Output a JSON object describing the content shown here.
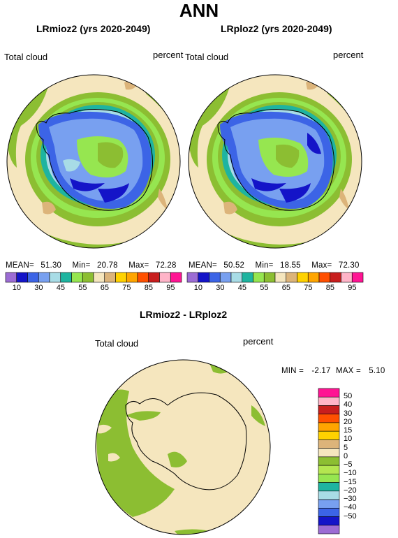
{
  "figure": {
    "title": "ANN"
  },
  "panels": [
    {
      "title": "LRmioz2 (yrs 2020-2049)",
      "left_label": "Total cloud",
      "right_label": "percent",
      "stats": {
        "mean_label": "MEAN=",
        "mean": "51.30",
        "min_label": "Min=",
        "min": "20.78",
        "max_label": "Max=",
        "max": "72.28"
      }
    },
    {
      "title": "LRploz2 (yrs 2020-2049)",
      "left_label": "Total cloud",
      "right_label": "percent",
      "stats": {
        "mean_label": "MEAN=",
        "mean": "50.52",
        "min_label": "Min=",
        "min": "18.55",
        "max_label": "Max=",
        "max": "72.30"
      }
    },
    {
      "title": "LRmioz2 - LRploz2",
      "left_label": "Total cloud",
      "right_label": "percent",
      "stats": {
        "min_label": "MIN =",
        "min": "-2.17",
        "max_label": "MAX =",
        "max": "5.10"
      }
    }
  ],
  "colorbar_horizontal": {
    "colors": [
      "#9c6cd4",
      "#1414c8",
      "#3c64e6",
      "#78a0f0",
      "#a8dce6",
      "#1eb4a0",
      "#96e650",
      "#8cbe32",
      "#f5e6be",
      "#dcb47a",
      "#ffd200",
      "#ffa500",
      "#ff5000",
      "#c81e1e",
      "#ffb4c8",
      "#ff1493"
    ],
    "labels": [
      "10",
      "30",
      "45",
      "55",
      "65",
      "75",
      "85",
      "95"
    ],
    "labels_left": [
      "10",
      "30",
      "45",
      "55",
      "65",
      "75",
      "85",
      "95"
    ]
  },
  "colorbar_horizontal_labels": [
    "10",
    "30",
    "45",
    "55",
    "65",
    "75",
    "85",
    "95"
  ],
  "colorbar_vertical": {
    "colors": [
      "#ff1493",
      "#ffb4c8",
      "#c81e1e",
      "#ff5000",
      "#ffa500",
      "#ffd200",
      "#dcb47a",
      "#f5e6be",
      "#8cbe32",
      "#b4e650",
      "#96e650",
      "#1eb4a0",
      "#a8dce6",
      "#78a0f0",
      "#3c64e6",
      "#1414c8",
      "#9c6cd4"
    ],
    "labels": [
      "50",
      "40",
      "30",
      "20",
      "15",
      "10",
      "5",
      "0",
      "−5",
      "−10",
      "−15",
      "−20",
      "−30",
      "−40",
      "−50"
    ]
  }
}
